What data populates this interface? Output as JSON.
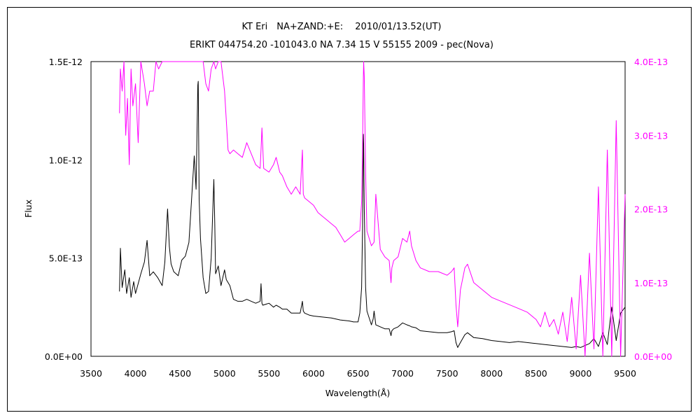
{
  "chart_data": {
    "type": "line",
    "title": "KT Eri　NA+ZAND:+E:　 2010/01/13.52(UT)",
    "subtitle": "ERIKT 044754.20 -101043.0 NA 7.34 15 V 55155 2009 - pec(Nova)",
    "xlabel": "Wavelength(Å)",
    "ylabel": "Flux",
    "xlim": [
      3500,
      9500
    ],
    "ylim_left": [
      0,
      1.5e-12
    ],
    "ylim_right": [
      0,
      4e-13
    ],
    "x_ticks": [
      "3500",
      "4000",
      "4500",
      "5000",
      "5500",
      "6000",
      "6500",
      "7000",
      "7500",
      "8000",
      "8500",
      "9000",
      "9500"
    ],
    "y_ticks_left": [
      "0.0E+00",
      "5.0E-13",
      "1.0E-12",
      "1.5E-12"
    ],
    "y_ticks_right": [
      "0.0E+00",
      "1.0E-13",
      "2.0E-13",
      "3.0E-13",
      "4.0E-13"
    ],
    "grid": false,
    "series": [
      {
        "axis": "left",
        "color": "#000000",
        "x": [
          3820,
          3830,
          3850,
          3880,
          3900,
          3930,
          3950,
          3980,
          4000,
          4030,
          4060,
          4100,
          4130,
          4160,
          4200,
          4250,
          4300,
          4330,
          4360,
          4380,
          4400,
          4430,
          4480,
          4520,
          4560,
          4600,
          4630,
          4660,
          4680,
          4700,
          4705,
          4715,
          4730,
          4760,
          4790,
          4820,
          4850,
          4880,
          4890,
          4900,
          4930,
          4960,
          5000,
          5020,
          5060,
          5100,
          5150,
          5200,
          5250,
          5300,
          5350,
          5400,
          5410,
          5420,
          5430,
          5500,
          5550,
          5580,
          5620,
          5650,
          5700,
          5750,
          5800,
          5850,
          5875,
          5885,
          5900,
          5950,
          6000,
          6100,
          6200,
          6300,
          6400,
          6450,
          6500,
          6520,
          6540,
          6550,
          6560,
          6563,
          6570,
          6585,
          6600,
          6650,
          6670,
          6680,
          6700,
          6750,
          6800,
          6850,
          6870,
          6880,
          6900,
          6950,
          7000,
          7050,
          7080,
          7100,
          7150,
          7200,
          7300,
          7400,
          7500,
          7550,
          7580,
          7600,
          7620,
          7650,
          7700,
          7730,
          7800,
          7900,
          8000,
          8100,
          8200,
          8300,
          8400,
          8500,
          8600,
          8700,
          8800,
          8900,
          8950,
          9000,
          9050,
          9100,
          9150,
          9200,
          9250,
          9300,
          9350,
          9400,
          9450,
          9500
        ],
        "y": [
          3.3e-13,
          5.5e-13,
          3.5e-13,
          4.4e-13,
          3.2e-13,
          4e-13,
          3e-13,
          3.8e-13,
          3.2e-13,
          3.7e-13,
          4.2e-13,
          4.8e-13,
          5.9e-13,
          4.1e-13,
          4.3e-13,
          4e-13,
          3.6e-13,
          4.8e-13,
          7.5e-13,
          5.6e-13,
          4.7e-13,
          4.3e-13,
          4.1e-13,
          4.9e-13,
          5.1e-13,
          5.8e-13,
          8e-13,
          1.02e-12,
          8.5e-13,
          1.38e-12,
          1.4e-12,
          8e-13,
          6e-13,
          4e-13,
          3.2e-13,
          3.3e-13,
          5e-13,
          9e-13,
          6.8e-13,
          4.2e-13,
          4.6e-13,
          3.6e-13,
          4.4e-13,
          3.9e-13,
          3.6e-13,
          2.9e-13,
          2.8e-13,
          2.8e-13,
          2.9e-13,
          2.8e-13,
          2.7e-13,
          2.8e-13,
          3.7e-13,
          2.7e-13,
          2.6e-13,
          2.7e-13,
          2.5e-13,
          2.6e-13,
          2.5e-13,
          2.4e-13,
          2.4e-13,
          2.2e-13,
          2.2e-13,
          2.2e-13,
          2.8e-13,
          2.3e-13,
          2.2e-13,
          2.1e-13,
          2.05e-13,
          2e-13,
          1.95e-13,
          1.85e-13,
          1.8e-13,
          1.75e-13,
          1.75e-13,
          2.2e-13,
          3.5e-13,
          6.5e-13,
          1.13e-12,
          1.08e-12,
          7.5e-13,
          3.5e-13,
          2.3e-13,
          1.6e-13,
          1.9e-13,
          2.3e-13,
          1.6e-13,
          1.5e-13,
          1.4e-13,
          1.4e-13,
          1.05e-13,
          1.3e-13,
          1.4e-13,
          1.5e-13,
          1.7e-13,
          1.6e-13,
          1.55e-13,
          1.5e-13,
          1.45e-13,
          1.3e-13,
          1.25e-13,
          1.2e-13,
          1.2e-13,
          1.25e-13,
          1.3e-13,
          7e-14,
          4.5e-14,
          7e-14,
          1.1e-13,
          1.2e-13,
          9.5e-14,
          9e-14,
          8e-14,
          7.5e-14,
          7e-14,
          7.5e-14,
          7e-14,
          6.5e-14,
          6e-14,
          5.5e-14,
          5e-14,
          4.5e-14,
          5e-14,
          4.5e-14,
          5.5e-14,
          6.5e-14,
          9e-14,
          5e-14,
          1.2e-13,
          6e-14,
          2.5e-13,
          8e-14,
          2.2e-13,
          2.5e-13
        ]
      },
      {
        "axis": "right",
        "color": "#ff00ff",
        "x": [
          3820,
          3830,
          3850,
          3870,
          3890,
          3910,
          3930,
          3950,
          3970,
          4000,
          4030,
          4060,
          4100,
          4130,
          4160,
          4200,
          4230,
          4260,
          4300,
          4330,
          4360,
          4380,
          4400,
          4430,
          4480,
          4520,
          4560,
          4600,
          4650,
          4700,
          4730,
          4760,
          4790,
          4820,
          4850,
          4880,
          4900,
          4930,
          4960,
          5000,
          5020,
          5040,
          5060,
          5100,
          5150,
          5200,
          5250,
          5300,
          5350,
          5400,
          5410,
          5420,
          5440,
          5500,
          5550,
          5580,
          5620,
          5650,
          5700,
          5750,
          5800,
          5850,
          5875,
          5885,
          5900,
          5950,
          6000,
          6050,
          6100,
          6150,
          6200,
          6250,
          6300,
          6350,
          6400,
          6450,
          6500,
          6520,
          6540,
          6550,
          6560,
          6563,
          6570,
          6585,
          6600,
          6650,
          6680,
          6700,
          6750,
          6800,
          6850,
          6870,
          6880,
          6900,
          6950,
          7000,
          7050,
          7080,
          7100,
          7150,
          7200,
          7300,
          7400,
          7500,
          7550,
          7580,
          7600,
          7620,
          7650,
          7700,
          7730,
          7800,
          7900,
          8000,
          8100,
          8200,
          8300,
          8400,
          8500,
          8550,
          8600,
          8650,
          8700,
          8750,
          8800,
          8850,
          8900,
          8950,
          9000,
          9050,
          9100,
          9150,
          9200,
          9250,
          9300,
          9350,
          9400,
          9450,
          9500
        ],
        "y": [
          3.3e-13,
          3.9e-13,
          3.6e-13,
          4e-13,
          3e-13,
          3.5e-13,
          2.6e-13,
          3.9e-13,
          3.4e-13,
          3.7e-13,
          2.9e-13,
          4e-13,
          3.7e-13,
          3.4e-13,
          3.6e-13,
          3.6e-13,
          4e-13,
          3.9e-13,
          4e-13,
          4e-13,
          4e-13,
          4e-13,
          4e-13,
          4e-13,
          4e-13,
          4e-13,
          4e-13,
          4e-13,
          4e-13,
          4e-13,
          4e-13,
          4e-13,
          3.7e-13,
          3.6e-13,
          3.9e-13,
          4e-13,
          3.9e-13,
          4e-13,
          4e-13,
          3.6e-13,
          3.2e-13,
          2.8e-13,
          2.75e-13,
          2.8e-13,
          2.75e-13,
          2.7e-13,
          2.9e-13,
          2.75e-13,
          2.6e-13,
          2.55e-13,
          2.8e-13,
          3.1e-13,
          2.55e-13,
          2.5e-13,
          2.6e-13,
          2.7e-13,
          2.5e-13,
          2.45e-13,
          2.3e-13,
          2.2e-13,
          2.3e-13,
          2.2e-13,
          2.8e-13,
          2.2e-13,
          2.15e-13,
          2.1e-13,
          2.05e-13,
          1.95e-13,
          1.9e-13,
          1.85e-13,
          1.8e-13,
          1.75e-13,
          1.65e-13,
          1.55e-13,
          1.6e-13,
          1.65e-13,
          1.7e-13,
          1.7e-13,
          2.1e-13,
          2.8e-13,
          3.8e-13,
          4e-13,
          3.8e-13,
          2.5e-13,
          1.7e-13,
          1.5e-13,
          1.55e-13,
          2.2e-13,
          1.45e-13,
          1.35e-13,
          1.3e-13,
          1e-13,
          1.2e-13,
          1.3e-13,
          1.35e-13,
          1.6e-13,
          1.55e-13,
          1.7e-13,
          1.5e-13,
          1.3e-13,
          1.2e-13,
          1.15e-13,
          1.15e-13,
          1.1e-13,
          1.15e-13,
          1.2e-13,
          7e-14,
          4e-14,
          9e-14,
          1.2e-13,
          1.25e-13,
          1e-13,
          9e-14,
          8e-14,
          7.5e-14,
          7e-14,
          6.5e-14,
          6e-14,
          5e-14,
          4e-14,
          6e-14,
          4e-14,
          5e-14,
          3e-14,
          6e-14,
          2e-14,
          8e-14,
          1e-14,
          1.1e-13,
          0.0,
          1.4e-13,
          1e-14,
          2.3e-13,
          0.0,
          2.8e-13,
          0.0,
          3.2e-13,
          0.0,
          2.2e-13
        ]
      }
    ]
  }
}
